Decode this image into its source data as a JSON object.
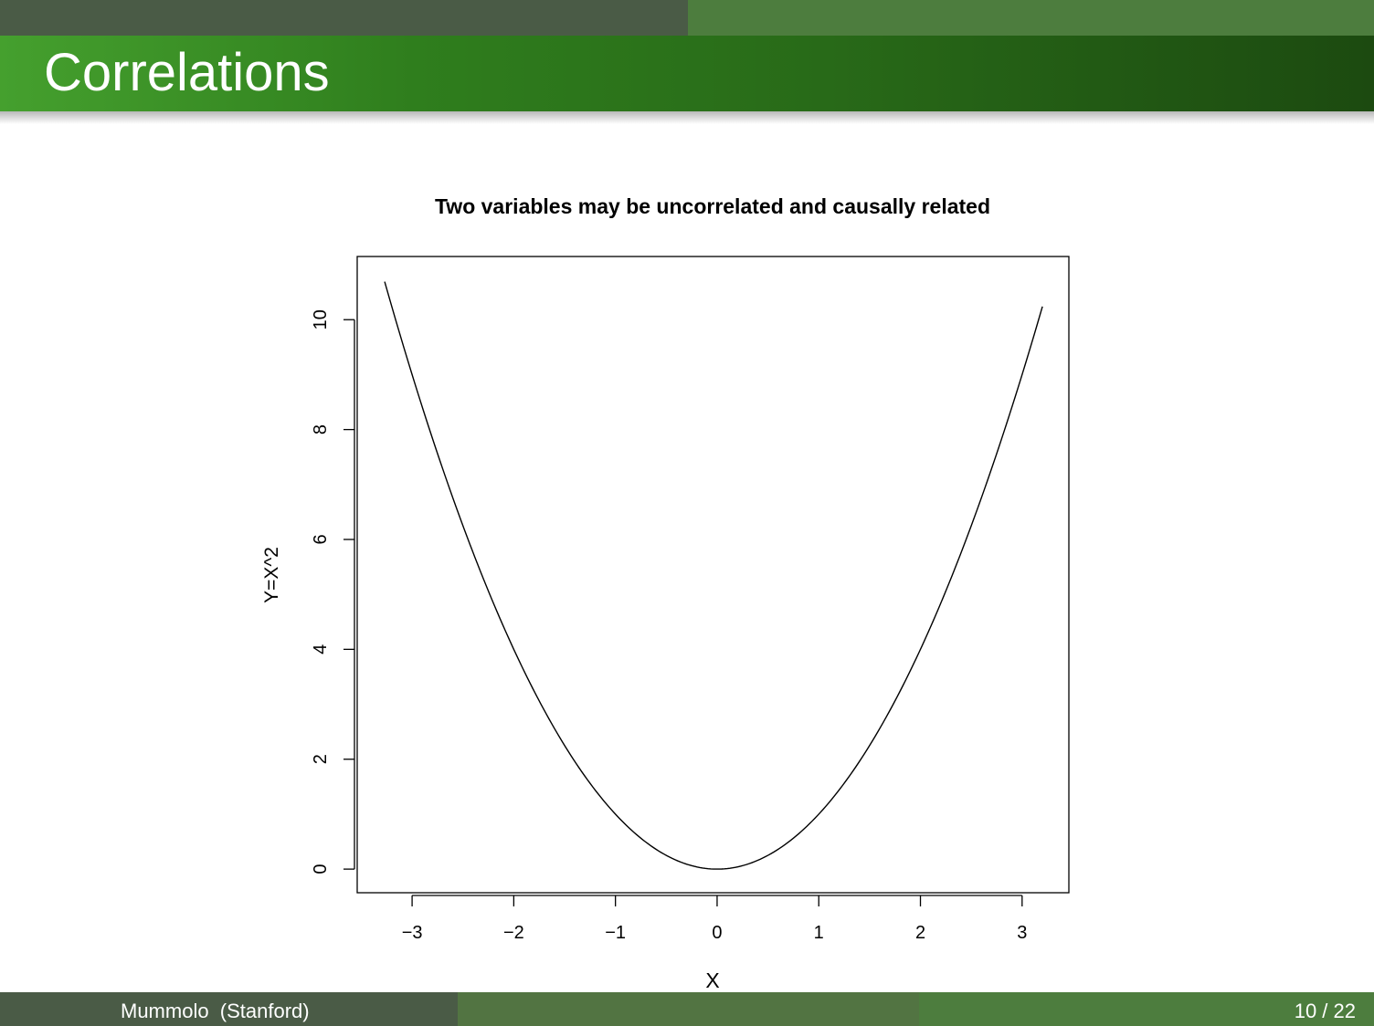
{
  "slide": {
    "title": "Correlations"
  },
  "footer": {
    "author": "Mummolo  (Stanford)",
    "page": "10 / 22"
  },
  "chart_data": {
    "type": "line",
    "title": "Two variables may be uncorrelated and causally related",
    "xlabel": "X",
    "ylabel": "Y=X^2",
    "xlim": [
      -3.54,
      3.46
    ],
    "ylim": [
      -0.43,
      11.15
    ],
    "xticks": [
      -3,
      -2,
      -1,
      0,
      1,
      2,
      3
    ],
    "xtick_labels": [
      "−3",
      "−2",
      "−1",
      "0",
      "1",
      "2",
      "3"
    ],
    "yticks": [
      0,
      2,
      4,
      6,
      8,
      10
    ],
    "ytick_labels": [
      "0",
      "2",
      "4",
      "6",
      "8",
      "10"
    ],
    "grid": false,
    "series": [
      {
        "function": "y = x^2",
        "x_range": [
          -3.27,
          3.2
        ],
        "color": "#000000"
      }
    ]
  }
}
